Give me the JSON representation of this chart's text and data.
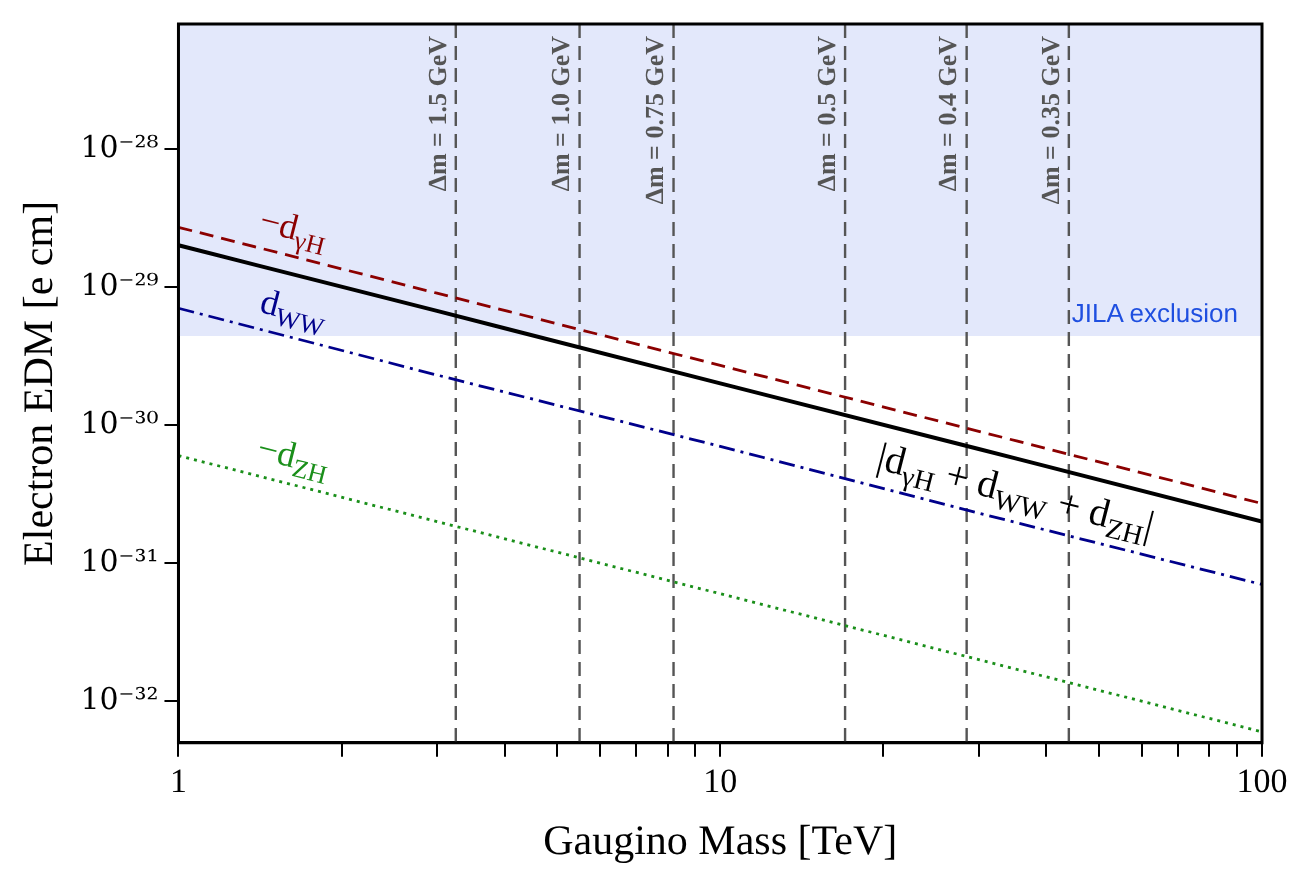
{
  "chart_data": {
    "type": "line",
    "xlabel": "Gaugino Mass [TeV]",
    "ylabel": "Electron EDM [e cm]",
    "log": "xy",
    "grid": false,
    "legend": false,
    "marker": "none",
    "xlim": [
      1,
      100
    ],
    "ylim": [
      5e-33,
      8e-28
    ],
    "xticks": [
      1,
      {
        "value": 2,
        "label": null
      },
      {
        "value": 3,
        "label": null
      },
      {
        "value": 4,
        "label": null
      },
      {
        "value": 5,
        "label": null
      },
      {
        "value": 6,
        "label": null
      },
      {
        "value": 7,
        "label": null
      },
      {
        "value": 8,
        "label": null
      },
      {
        "value": 9,
        "label": null
      },
      10,
      {
        "value": 20,
        "label": null
      },
      {
        "value": 30,
        "label": null
      },
      {
        "value": 40,
        "label": null
      },
      {
        "value": 50,
        "label": null
      },
      {
        "value": 60,
        "label": null
      },
      {
        "value": 70,
        "label": null
      },
      {
        "value": 80,
        "label": null
      },
      {
        "value": 90,
        "label": null
      },
      100
    ],
    "yticks": [
      {
        "value": 1e-32,
        "label": "10⁻³²"
      },
      {
        "value": 1e-31,
        "label": "10⁻³¹"
      },
      {
        "value": 1e-30,
        "label": "10⁻³⁰"
      },
      {
        "value": 1e-29,
        "label": "10⁻²⁹"
      },
      {
        "value": 1e-28,
        "label": "10⁻²⁸"
      }
    ],
    "series": [
      {
        "name": "−d$_{γH}$",
        "color": "#8b0000",
        "line_style": "dashed",
        "x": [
          1,
          3,
          10,
          30,
          100
        ],
        "values": [
          2.7e-29,
          9e-30,
          2.7e-30,
          9e-31,
          2.7e-31
        ]
      },
      {
        "name": "d$_{WW}$",
        "color": "#00008b",
        "line_style": "dashdot",
        "x": [
          1,
          3,
          10,
          30,
          100
        ],
        "values": [
          7e-30,
          2.3e-30,
          7e-31,
          2.3e-31,
          7e-32
        ]
      },
      {
        "name": "−d$_{ZH}$",
        "color": "#1a8f1a",
        "line_style": "dotted",
        "x": [
          1,
          3,
          10,
          30,
          100
        ],
        "values": [
          6e-31,
          2e-31,
          6e-32,
          2e-32,
          6e-33
        ]
      },
      {
        "name": "|d$_{γH}$ + d$_{WW}$ + d$_{ZH}$|",
        "color": "#000000",
        "line_style": "solid",
        "x": [
          1,
          3,
          10,
          30,
          100
        ],
        "values": [
          2e-29,
          6.7e-30,
          2e-30,
          6.7e-31,
          2e-31
        ]
      }
    ],
    "ref_lines": [
      {
        "axis": "x",
        "value": 3.25,
        "color": "#555555",
        "line_style": "dashed"
      },
      {
        "axis": "x",
        "value": 5.5,
        "color": "#555555",
        "line_style": "dashed"
      },
      {
        "axis": "x",
        "value": 8.2,
        "color": "#555555",
        "line_style": "dashed"
      },
      {
        "axis": "x",
        "value": 17,
        "color": "#555555",
        "line_style": "dashed"
      },
      {
        "axis": "x",
        "value": 28.5,
        "color": "#555555",
        "line_style": "dashed"
      },
      {
        "axis": "x",
        "value": 44,
        "color": "#555555",
        "line_style": "dashed"
      }
    ],
    "annotations": [
      {
        "text": "Δm = 1.5 GeV",
        "x": 3.25
      },
      {
        "text": "Δm = 1.0 GeV",
        "x": 5.5
      },
      {
        "text": "Δm = 0.75 GeV",
        "x": 8.2
      },
      {
        "text": "Δm = 0.5 GeV",
        "x": 17
      },
      {
        "text": "Δm = 0.4 GeV",
        "x": 28.5
      },
      {
        "text": "Δm = 0.35 GeV",
        "x": 44
      }
    ],
    "bands": [
      {
        "axis": "y",
        "from": 4.4e-30,
        "to": 8e-28,
        "label": "JILA exclusion",
        "color": "#e3e8fb"
      }
    ]
  }
}
